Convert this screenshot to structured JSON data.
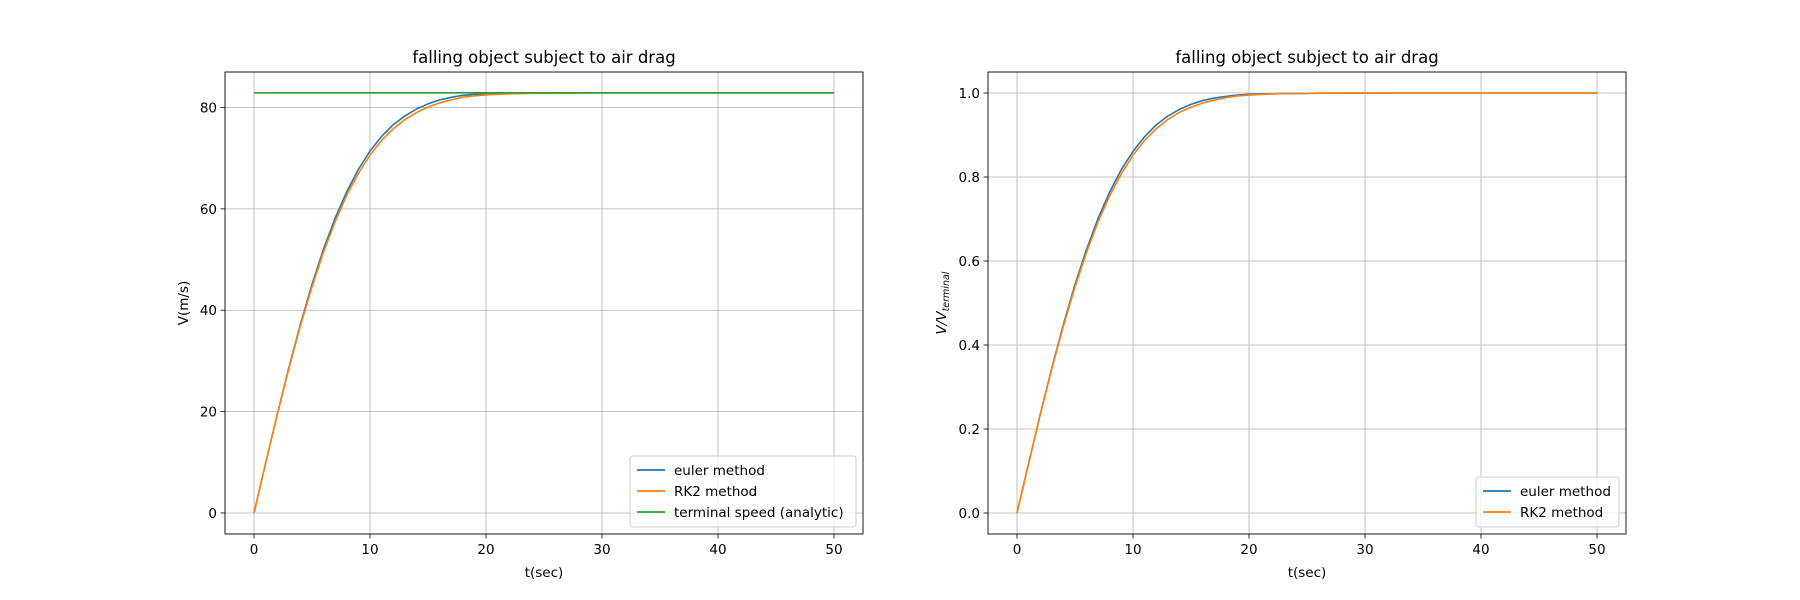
{
  "chart_data": [
    {
      "type": "line",
      "title": "falling object subject to air drag",
      "xlabel": "t(sec)",
      "ylabel": "V(m/s)",
      "xlim": [
        -2.5,
        52.5
      ],
      "ylim": [
        -4.15,
        87.0
      ],
      "xticks": [
        0,
        10,
        20,
        30,
        40,
        50
      ],
      "yticks": [
        0,
        20,
        40,
        60,
        80
      ],
      "grid": true,
      "legend_position": "lower right",
      "x": [
        0,
        1,
        2,
        3,
        4,
        5,
        6,
        7,
        8,
        9,
        10,
        11,
        12,
        13,
        14,
        15,
        16,
        17,
        18,
        19,
        20,
        22,
        24,
        26,
        28,
        30,
        32,
        35,
        40,
        45,
        50
      ],
      "series": [
        {
          "name": "euler method",
          "color": "#1f77b4",
          "values": [
            0,
            9.8,
            19.4,
            28.6,
            37.2,
            45.1,
            52.1,
            58.2,
            63.4,
            67.8,
            71.4,
            74.3,
            76.6,
            78.3,
            79.7,
            80.7,
            81.5,
            82.0,
            82.4,
            82.6,
            82.7,
            82.8,
            82.85,
            82.87,
            82.88,
            82.89,
            82.9,
            82.9,
            82.9,
            82.9,
            82.9
          ]
        },
        {
          "name": "RK2 method",
          "color": "#ff7f0e",
          "values": [
            0,
            9.8,
            19.4,
            28.4,
            36.9,
            44.6,
            51.5,
            57.5,
            62.7,
            67.0,
            70.6,
            73.5,
            75.8,
            77.6,
            79.0,
            80.1,
            80.9,
            81.5,
            82.0,
            82.3,
            82.5,
            82.7,
            82.8,
            82.85,
            82.87,
            82.88,
            82.9,
            82.9,
            82.9,
            82.9,
            82.9
          ]
        },
        {
          "name": "terminal speed (analytic)",
          "color": "#2ca02c",
          "x": [
            0,
            50
          ],
          "values": [
            82.9,
            82.9
          ]
        }
      ]
    },
    {
      "type": "line",
      "title": "falling object subject to air drag",
      "xlabel": "t(sec)",
      "ylabel_main": "V/V",
      "ylabel_sub": "terminal",
      "xlim": [
        -2.5,
        52.5
      ],
      "ylim": [
        -0.05,
        1.05
      ],
      "xticks": [
        0,
        10,
        20,
        30,
        40,
        50
      ],
      "yticks": [
        0.0,
        0.2,
        0.4,
        0.6,
        0.8,
        1.0
      ],
      "ytick_labels": [
        "0.0",
        "0.2",
        "0.4",
        "0.6",
        "0.8",
        "1.0"
      ],
      "grid": true,
      "legend_position": "lower right",
      "x": [
        0,
        1,
        2,
        3,
        4,
        5,
        6,
        7,
        8,
        9,
        10,
        11,
        12,
        13,
        14,
        15,
        16,
        17,
        18,
        19,
        20,
        22,
        24,
        26,
        28,
        30,
        32,
        35,
        40,
        45,
        50
      ],
      "series": [
        {
          "name": "euler method",
          "color": "#1f77b4",
          "values": [
            0,
            0.118,
            0.234,
            0.345,
            0.449,
            0.544,
            0.628,
            0.702,
            0.765,
            0.818,
            0.861,
            0.896,
            0.924,
            0.945,
            0.961,
            0.973,
            0.982,
            0.988,
            0.992,
            0.995,
            0.997,
            0.998,
            0.999,
            0.9995,
            0.9998,
            0.9999,
            1.0,
            1.0,
            1.0,
            1.0,
            1.0
          ]
        },
        {
          "name": "RK2 method",
          "color": "#ff7f0e",
          "values": [
            0,
            0.118,
            0.234,
            0.343,
            0.445,
            0.538,
            0.621,
            0.694,
            0.756,
            0.808,
            0.852,
            0.887,
            0.915,
            0.937,
            0.954,
            0.966,
            0.976,
            0.983,
            0.989,
            0.993,
            0.995,
            0.998,
            0.999,
            0.9995,
            0.9998,
            0.9999,
            1.0,
            1.0,
            1.0,
            1.0,
            1.0
          ]
        }
      ]
    }
  ]
}
